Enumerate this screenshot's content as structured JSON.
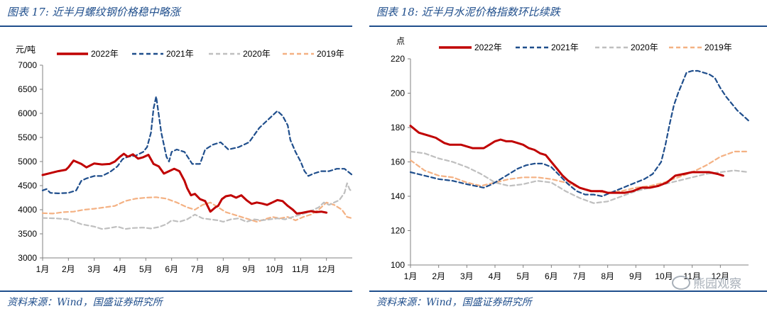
{
  "domain": "Chart",
  "colors": {
    "y2022": "#c00000",
    "y2021": "#1f4e8c",
    "y2020": "#bfbfbf",
    "y2019": "#f4b183",
    "accent": "#1f4e8c"
  },
  "source_text": "资料来源：Wind，国盛证券研究所",
  "watermark_text": "熊园观察",
  "chart_data": [
    {
      "type": "line",
      "title": "图表 17:  近半月螺纹钢价格稳中略涨",
      "ylabel": "元/吨",
      "ylim": [
        3000,
        7000
      ],
      "yticks": [
        3000,
        3500,
        4000,
        4500,
        5000,
        5500,
        6000,
        6500,
        7000
      ],
      "xlim": [
        1,
        13
      ],
      "xtick_labels": [
        "1月",
        "2月",
        "3月",
        "4月",
        "5月",
        "6月",
        "7月",
        "8月",
        "9月",
        "10月",
        "11月",
        "12月"
      ],
      "legend_position": "top",
      "series": [
        {
          "name": "2022年",
          "key": "y2022",
          "dash": "solid",
          "x": [
            1,
            1.3,
            1.6,
            1.9,
            2.0,
            2.2,
            2.5,
            2.7,
            3.0,
            3.3,
            3.6,
            3.8,
            4.0,
            4.15,
            4.3,
            4.5,
            4.7,
            4.9,
            5.1,
            5.3,
            5.5,
            5.7,
            5.9,
            6.1,
            6.3,
            6.5,
            6.6,
            6.75,
            6.9,
            7.1,
            7.3,
            7.5,
            7.7,
            7.8,
            7.95,
            8.1,
            8.3,
            8.5,
            8.7,
            8.9,
            9.1,
            9.3,
            9.5,
            9.7,
            9.9,
            10.1,
            10.3,
            10.5,
            10.7,
            10.85,
            11.0,
            11.2,
            11.4,
            11.6,
            11.8,
            12.0
          ],
          "y": [
            4720,
            4760,
            4800,
            4830,
            4880,
            5020,
            4950,
            4880,
            4960,
            4940,
            4950,
            5000,
            5100,
            5160,
            5100,
            5150,
            5060,
            5090,
            5140,
            4950,
            4900,
            4750,
            4800,
            4850,
            4800,
            4600,
            4450,
            4300,
            4330,
            4220,
            4180,
            3960,
            4050,
            4080,
            4220,
            4280,
            4300,
            4250,
            4300,
            4200,
            4120,
            4150,
            4130,
            4100,
            4150,
            4200,
            4180,
            4080,
            4000,
            3920,
            3930,
            3950,
            3970,
            3950,
            3960,
            3940
          ]
        },
        {
          "name": "2021年",
          "key": "y2021",
          "dash": "dash",
          "x": [
            1,
            1.15,
            1.3,
            1.6,
            2.0,
            2.3,
            2.5,
            2.7,
            3.0,
            3.3,
            3.6,
            3.9,
            4.1,
            4.3,
            4.6,
            4.9,
            5.05,
            5.2,
            5.3,
            5.4,
            5.6,
            5.8,
            5.9,
            6.0,
            6.2,
            6.5,
            6.8,
            7.1,
            7.3,
            7.6,
            7.9,
            8.2,
            8.6,
            9.0,
            9.4,
            9.8,
            10.1,
            10.3,
            10.5,
            10.6,
            10.8,
            11.0,
            11.15,
            11.3,
            11.5,
            11.8,
            12.1,
            12.4,
            12.7,
            13
          ],
          "y": [
            4400,
            4430,
            4350,
            4340,
            4350,
            4400,
            4600,
            4650,
            4700,
            4700,
            4780,
            4900,
            5050,
            5100,
            5120,
            5200,
            5300,
            5600,
            6100,
            6350,
            5600,
            5100,
            5000,
            5200,
            5250,
            5200,
            4950,
            4950,
            5250,
            5350,
            5400,
            5250,
            5300,
            5400,
            5700,
            5900,
            6050,
            5950,
            5750,
            5450,
            5200,
            5000,
            4800,
            4700,
            4750,
            4800,
            4800,
            4850,
            4850,
            4720
          ]
        },
        {
          "name": "2020年",
          "key": "y2020",
          "dash": "dash",
          "x": [
            1,
            1.5,
            2.0,
            2.5,
            3.0,
            3.3,
            3.6,
            3.9,
            4.2,
            4.5,
            4.9,
            5.2,
            5.5,
            5.8,
            6.0,
            6.3,
            6.6,
            6.9,
            7.2,
            7.5,
            7.8,
            8.0,
            8.3,
            8.6,
            8.9,
            9.2,
            9.5,
            9.8,
            10.1,
            10.4,
            10.7,
            11.0,
            11.3,
            11.5,
            11.7,
            11.9,
            12.1,
            12.3,
            12.5,
            12.7,
            12.8,
            12.9,
            13
          ],
          "y": [
            3830,
            3820,
            3800,
            3700,
            3650,
            3600,
            3620,
            3650,
            3600,
            3620,
            3630,
            3610,
            3640,
            3700,
            3780,
            3750,
            3800,
            3900,
            3820,
            3800,
            3780,
            3750,
            3800,
            3820,
            3750,
            3800,
            3780,
            3800,
            3820,
            3800,
            3850,
            3900,
            3950,
            4000,
            4050,
            4150,
            4100,
            4150,
            4200,
            4350,
            4550,
            4420,
            4370
          ]
        },
        {
          "name": "2019年",
          "key": "y2019",
          "dash": "dash",
          "x": [
            1,
            1.4,
            1.8,
            2.2,
            2.6,
            3.0,
            3.4,
            3.8,
            4.2,
            4.6,
            5.0,
            5.4,
            5.8,
            6.2,
            6.6,
            6.9,
            7.2,
            7.5,
            7.8,
            8.1,
            8.4,
            8.7,
            9.0,
            9.3,
            9.6,
            9.9,
            10.2,
            10.5,
            10.8,
            11.1,
            11.4,
            11.7,
            12.0,
            12.3,
            12.6,
            12.8,
            13
          ],
          "y": [
            3930,
            3920,
            3950,
            3960,
            4000,
            4020,
            4050,
            4080,
            4180,
            4230,
            4250,
            4260,
            4230,
            4150,
            4050,
            4000,
            4100,
            4150,
            4050,
            3950,
            3900,
            3850,
            3800,
            3750,
            3800,
            3850,
            3820,
            3850,
            3780,
            3850,
            3900,
            4000,
            4150,
            4100,
            4000,
            3850,
            3820
          ]
        }
      ]
    },
    {
      "type": "line",
      "title": "图表 18:  近半月水泥价格指数环比续跌",
      "ylabel": "点",
      "ylim": [
        100,
        220
      ],
      "yticks": [
        100,
        120,
        140,
        160,
        180,
        200,
        220
      ],
      "xlim": [
        1,
        13
      ],
      "xtick_labels": [
        "1月",
        "2月",
        "3月",
        "4月",
        "5月",
        "6月",
        "7月",
        "8月",
        "9月",
        "10月",
        "11月",
        "12月"
      ],
      "legend_position": "top",
      "series": [
        {
          "name": "2022年",
          "key": "y2022",
          "dash": "solid",
          "x": [
            1,
            1.15,
            1.3,
            1.5,
            1.7,
            1.9,
            2.0,
            2.2,
            2.4,
            2.6,
            2.8,
            3.0,
            3.2,
            3.4,
            3.6,
            3.8,
            4.0,
            4.2,
            4.4,
            4.6,
            4.8,
            5.0,
            5.2,
            5.4,
            5.6,
            5.8,
            6.0,
            6.2,
            6.4,
            6.6,
            6.8,
            7.0,
            7.2,
            7.4,
            7.6,
            7.8,
            8.0,
            8.3,
            8.6,
            8.9,
            9.2,
            9.5,
            9.8,
            10.1,
            10.4,
            10.7,
            11.0,
            11.3,
            11.6,
            11.9,
            12.1
          ],
          "y": [
            181,
            179,
            177,
            176,
            175,
            174,
            173,
            171,
            170,
            170,
            170,
            169,
            168,
            168,
            168,
            170,
            172,
            173,
            172,
            172,
            171,
            170,
            168,
            167,
            165,
            164,
            160,
            156,
            152,
            149,
            147,
            145,
            144,
            143,
            143,
            143,
            142,
            142,
            142,
            143,
            145,
            145,
            146,
            148,
            152,
            153,
            154,
            154,
            154,
            153,
            152
          ]
        },
        {
          "name": "2021年",
          "key": "y2021",
          "dash": "dash",
          "x": [
            1,
            1.5,
            2.0,
            2.5,
            3.0,
            3.3,
            3.6,
            3.9,
            4.2,
            4.5,
            4.8,
            5.1,
            5.4,
            5.7,
            6.0,
            6.3,
            6.6,
            6.9,
            7.2,
            7.5,
            7.8,
            8.1,
            8.4,
            8.7,
            9.0,
            9.3,
            9.6,
            9.9,
            10.05,
            10.2,
            10.35,
            10.5,
            10.65,
            10.8,
            11.0,
            11.2,
            11.4,
            11.6,
            11.8,
            12.0,
            12.2,
            12.4,
            12.6,
            12.8,
            13
          ],
          "y": [
            154,
            152,
            150,
            149,
            147,
            146,
            145,
            147,
            150,
            153,
            156,
            158,
            159,
            159,
            157,
            152,
            147,
            143,
            141,
            141,
            140,
            142,
            144,
            146,
            148,
            150,
            153,
            160,
            170,
            182,
            193,
            200,
            206,
            212,
            213,
            213,
            212,
            211,
            209,
            203,
            198,
            194,
            190,
            187,
            184
          ]
        },
        {
          "name": "2020年",
          "key": "y2020",
          "dash": "dash",
          "x": [
            1,
            1.5,
            2.0,
            2.5,
            3.0,
            3.5,
            4.0,
            4.5,
            5.0,
            5.5,
            6.0,
            6.5,
            7.0,
            7.5,
            8.0,
            8.5,
            9.0,
            9.5,
            10.0,
            10.5,
            11.0,
            11.5,
            12.0,
            12.5,
            13
          ],
          "y": [
            166,
            165,
            162,
            160,
            157,
            153,
            148,
            146,
            147,
            149,
            148,
            143,
            139,
            136,
            137,
            140,
            143,
            145,
            147,
            149,
            151,
            153,
            154,
            155,
            154
          ]
        },
        {
          "name": "2019年",
          "key": "y2019",
          "dash": "dash",
          "x": [
            1,
            1.5,
            2.0,
            2.5,
            3.0,
            3.5,
            4.0,
            4.5,
            5.0,
            5.5,
            6.0,
            6.5,
            7.0,
            7.5,
            8.0,
            8.5,
            9.0,
            9.5,
            10.0,
            10.5,
            11.0,
            11.5,
            12.0,
            12.5,
            13
          ],
          "y": [
            161,
            155,
            152,
            151,
            148,
            146,
            148,
            150,
            151,
            151,
            150,
            148,
            145,
            143,
            142,
            143,
            145,
            146,
            148,
            151,
            154,
            158,
            163,
            166,
            166
          ]
        }
      ]
    }
  ]
}
